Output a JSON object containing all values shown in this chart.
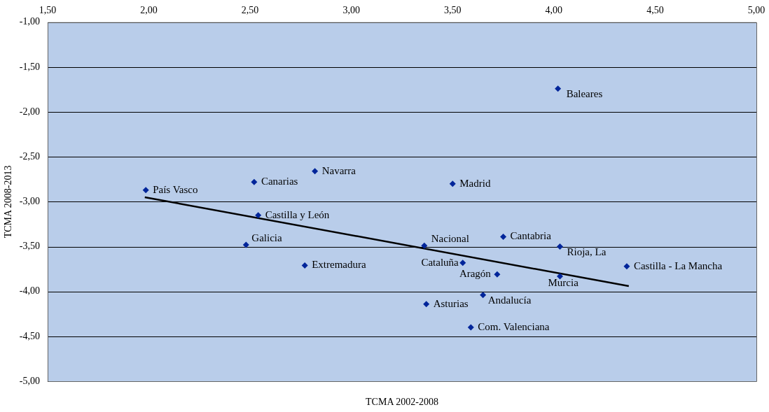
{
  "chart_data": {
    "type": "scatter",
    "xlabel": "TCMA 2002-2008",
    "ylabel": "TCMA 2008-2013",
    "xlim": [
      1.5,
      5
    ],
    "xticks": [
      {
        "value": 1.5,
        "label": "1,50"
      },
      {
        "value": 2,
        "label": "2,00"
      },
      {
        "value": 2.5,
        "label": "2,50"
      },
      {
        "value": 3,
        "label": "3,00"
      },
      {
        "value": 3.5,
        "label": "3,50"
      },
      {
        "value": 4,
        "label": "4,00"
      },
      {
        "value": 4.5,
        "label": "4,50"
      },
      {
        "value": 5,
        "label": "5,00"
      }
    ],
    "ylim": [
      -5,
      -1
    ],
    "yticks": [
      {
        "value": -1,
        "label": "-1,00"
      },
      {
        "value": -1.5,
        "label": "-1,50"
      },
      {
        "value": -2,
        "label": "-2,00"
      },
      {
        "value": -2.5,
        "label": "-2,50"
      },
      {
        "value": -3,
        "label": "-3,00"
      },
      {
        "value": -3.5,
        "label": "-3,50"
      },
      {
        "value": -4,
        "label": "-4,00"
      },
      {
        "value": -4.5,
        "label": "-4,50"
      },
      {
        "value": -5,
        "label": "-5,00"
      }
    ],
    "grid": "y",
    "legend": false,
    "marker": "diamond",
    "series": [
      {
        "color": "#00259a",
        "x": [
          1.985,
          2.52,
          2.82,
          2.54,
          2.48,
          2.77,
          3.5,
          4.02,
          3.36,
          3.75,
          4.03,
          3.55,
          3.72,
          4.36,
          4.03,
          3.65,
          3.37,
          3.59
        ],
        "values": [
          -2.87,
          -2.78,
          -2.66,
          -3.15,
          -3.48,
          -3.71,
          -2.8,
          -1.74,
          -3.49,
          -3.39,
          -3.5,
          -3.68,
          -3.81,
          -3.72,
          -3.83,
          -4.04,
          -4.14,
          -4.4
        ]
      },
      {
        "type": "line",
        "marker": "none",
        "color": "#000000",
        "x": [
          1.98,
          4.37
        ],
        "values": [
          -2.95,
          -3.94
        ]
      }
    ],
    "annotations": [
      {
        "text": "País Vasco",
        "x": 1.985,
        "y": -2.87
      },
      {
        "text": "Canarias",
        "x": 2.52,
        "y": -2.78
      },
      {
        "text": "Navarra",
        "x": 2.82,
        "y": -2.66
      },
      {
        "text": "Castilla y León",
        "x": 2.54,
        "y": -3.15
      },
      {
        "text": "Galicia",
        "x": 2.48,
        "y": -3.48
      },
      {
        "text": "Extremadura",
        "x": 2.77,
        "y": -3.71
      },
      {
        "text": "Madrid",
        "x": 3.5,
        "y": -2.8
      },
      {
        "text": "Baleares",
        "x": 4.02,
        "y": -1.74
      },
      {
        "text": "Nacional",
        "x": 3.36,
        "y": -3.49
      },
      {
        "text": "Cantabria",
        "x": 3.75,
        "y": -3.39
      },
      {
        "text": "Rioja, La",
        "x": 4.03,
        "y": -3.5
      },
      {
        "text": "Cataluña",
        "x": 3.55,
        "y": -3.68
      },
      {
        "text": "Aragón",
        "x": 3.72,
        "y": -3.81
      },
      {
        "text": "Castilla - La Mancha",
        "x": 4.36,
        "y": -3.72
      },
      {
        "text": "Murcia",
        "x": 4.03,
        "y": -3.83
      },
      {
        "text": "Andalucía",
        "x": 3.65,
        "y": -4.04
      },
      {
        "text": "Asturias",
        "x": 3.37,
        "y": -4.14
      },
      {
        "text": "Com. Valenciana",
        "x": 3.59,
        "y": -4.4
      }
    ]
  }
}
